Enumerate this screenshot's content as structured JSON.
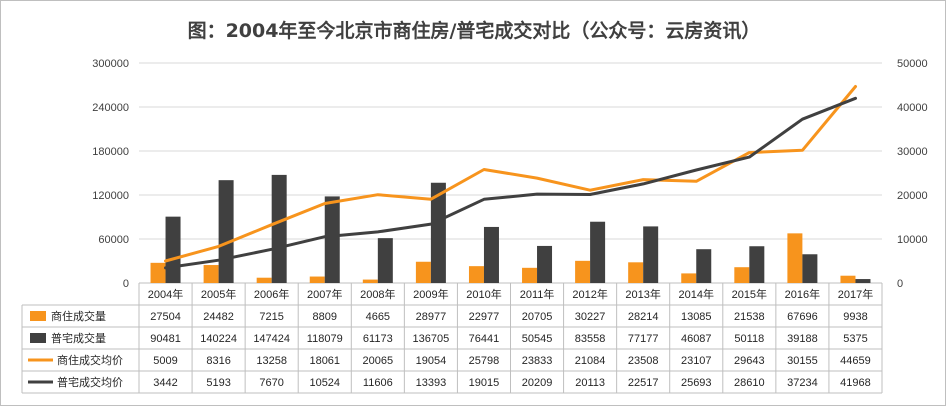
{
  "chart_data": {
    "type": "bar",
    "title": "图：2004年至今北京市商住房/普宅成交对比（公众号：云房资讯）",
    "categories": [
      "2004年",
      "2005年",
      "2006年",
      "2007年",
      "2008年",
      "2009年",
      "2010年",
      "2011年",
      "2012年",
      "2013年",
      "2014年",
      "2015年",
      "2016年",
      "2017年"
    ],
    "ylim_left": [
      0,
      300000
    ],
    "ylim_right": [
      0,
      50000
    ],
    "left_ticks": [
      "0",
      "60000",
      "120000",
      "180000",
      "240000",
      "300000"
    ],
    "right_ticks": [
      "0",
      "10000",
      "20000",
      "30000",
      "40000",
      "50000"
    ],
    "grid": true,
    "legend_placement": "table-left",
    "series": [
      {
        "name": "商住成交量",
        "type": "bar",
        "axis": "left",
        "color": "#f7941d",
        "values": [
          27504,
          24482,
          7215,
          8809,
          4665,
          28977,
          22977,
          20705,
          30227,
          28214,
          13085,
          21538,
          67696,
          9938
        ]
      },
      {
        "name": "普宅成交量",
        "type": "bar",
        "axis": "left",
        "color": "#404040",
        "values": [
          90481,
          140224,
          147424,
          118079,
          61173,
          136705,
          76441,
          50545,
          83558,
          77177,
          46087,
          50118,
          39188,
          5375
        ]
      },
      {
        "name": "商住成交均价",
        "type": "line",
        "axis": "right",
        "color": "#f7941d",
        "values": [
          5009,
          8316,
          13258,
          18061,
          20065,
          19054,
          25798,
          23833,
          21084,
          23508,
          23107,
          29643,
          30155,
          44659
        ]
      },
      {
        "name": "普宅成交均价",
        "type": "line",
        "axis": "right",
        "color": "#404040",
        "values": [
          3442,
          5193,
          7670,
          10524,
          11606,
          13393,
          19015,
          20209,
          20113,
          22517,
          25693,
          28610,
          37234,
          41968
        ]
      }
    ]
  }
}
